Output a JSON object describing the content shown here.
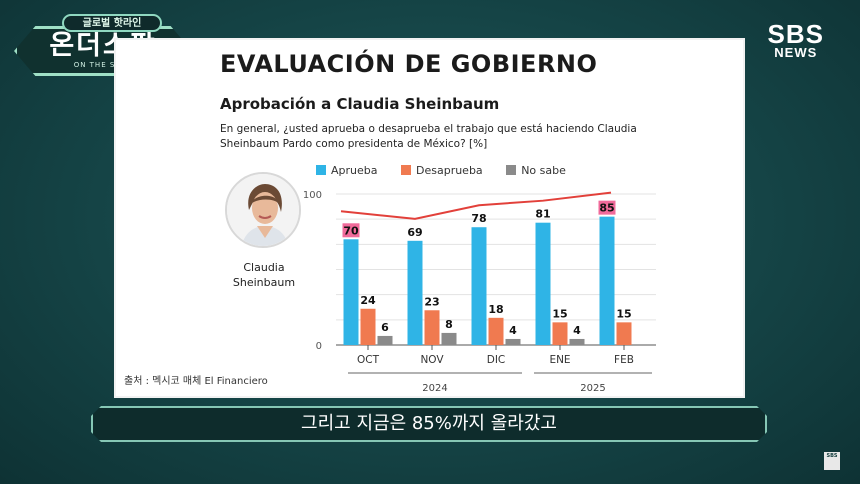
{
  "logo": {
    "top": "글로벌 핫라인",
    "title": "온더스팟",
    "sub": "ON THE SPOT"
  },
  "broadcaster": {
    "line1": "SBS",
    "line2": "NEWS"
  },
  "heading": "EVALUACIÓN DE GOBIERNO",
  "subtitle": "Aprobación a Claudia Sheinbaum",
  "question": "En general, ¿usted aprueba o desaprueba el trabajo que está haciendo Claudia Sheinbaum Pardo como presidenta de México? [%]",
  "person": {
    "line1": "Claudia",
    "line2": "Sheinbaum"
  },
  "source": "출처 : 멕시코 매체 El Financiero",
  "caption": "그리고 지금은 85%까지 올라갔고",
  "watermark": "SBS",
  "colors": {
    "aprueba": "#2fb4e6",
    "desaprueba": "#f07a50",
    "nosabe": "#8a8a8a",
    "trend": "#e2403a",
    "highlight": "#f06a9a"
  },
  "chart_data": {
    "type": "bar",
    "categories": [
      "OCT",
      "NOV",
      "DIC",
      "ENE",
      "FEB"
    ],
    "year_labels": [
      "2024",
      "2025"
    ],
    "series": [
      {
        "name": "Aprueba",
        "values": [
          70,
          69,
          78,
          81,
          85
        ]
      },
      {
        "name": "Desaprueba",
        "values": [
          24,
          23,
          18,
          15,
          15
        ]
      },
      {
        "name": "No sabe",
        "values": [
          6,
          8,
          4,
          4,
          null
        ]
      }
    ],
    "highlighted": {
      "series": "Aprueba",
      "categories": [
        "OCT",
        "FEB"
      ]
    },
    "trend_line": true,
    "yticks": [
      "100",
      "0"
    ],
    "ylim": [
      0,
      100
    ],
    "grid": true,
    "legend_position": "top"
  }
}
